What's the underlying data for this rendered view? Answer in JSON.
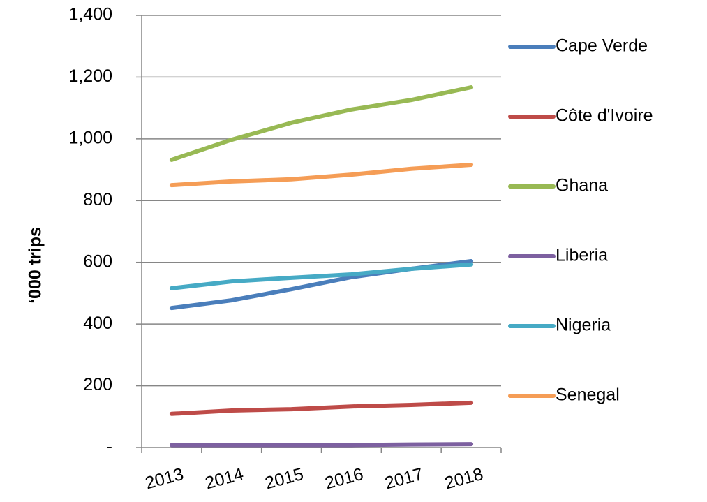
{
  "chart_data": {
    "type": "line",
    "y_label": "‘000 trips",
    "categories": [
      "2013",
      "2014",
      "2015",
      "2016",
      "2017",
      "2018"
    ],
    "series": [
      {
        "name": "Cape Verde",
        "color": "#4a7ebb",
        "values": [
          452,
          477,
          513,
          552,
          579,
          604
        ]
      },
      {
        "name": "Côte d'Ivoire",
        "color": "#be4b48",
        "values": [
          109,
          120,
          124,
          133,
          138,
          145
        ]
      },
      {
        "name": "Ghana",
        "color": "#98b954",
        "values": [
          932,
          997,
          1052,
          1095,
          1126,
          1167
        ]
      },
      {
        "name": "Liberia",
        "color": "#7d60a0",
        "values": [
          8,
          8,
          8,
          8,
          10,
          11
        ]
      },
      {
        "name": "Nigeria",
        "color": "#46aac5",
        "values": [
          516,
          538,
          550,
          561,
          579,
          593
        ]
      },
      {
        "name": "Senegal",
        "color": "#f59d56",
        "values": [
          850,
          862,
          869,
          884,
          903,
          916
        ]
      }
    ],
    "ylim": [
      0,
      1400
    ],
    "yticks": [
      {
        "value": 0,
        "label": "-"
      },
      200,
      400,
      600,
      800,
      {
        "value": 1000,
        "label": "1,000"
      },
      {
        "value": 1200,
        "label": "1,200"
      },
      {
        "value": 1400,
        "label": "1,400"
      }
    ],
    "grid": true,
    "legend": "right"
  }
}
